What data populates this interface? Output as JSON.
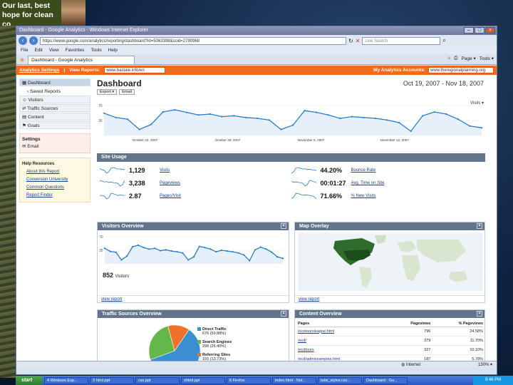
{
  "slide": {
    "banner_text": "Our last, best hope for clean co"
  },
  "window": {
    "title": "Dashboard - Google Analytics - Windows Internet Explorer",
    "url": "https://www.google.com/analytics/reporting/dashboard?id=5063398&scid=2790968",
    "search_placeholder": "Live Search",
    "menu": [
      "File",
      "Edit",
      "View",
      "Favorites",
      "Tools",
      "Help"
    ],
    "tab": "Dashboard - Google Analytics",
    "tools": [
      "Page ▾",
      "Tools ▾"
    ]
  },
  "ga_topbar": {
    "settings": "Analytics Settings",
    "view_reports_label": "View Reports:",
    "site_select": "www.bastale.info/en",
    "my_accounts_label": "My Analytics Accounts:",
    "account_select": "www.theregionalplanning.org"
  },
  "sidebar": {
    "items": [
      {
        "label": "Dashboard",
        "active": true
      },
      {
        "label": "› Saved Reports",
        "sub": true
      },
      {
        "label": "Visitors"
      },
      {
        "label": "Traffic Sources"
      },
      {
        "label": "Content"
      },
      {
        "label": "Goals"
      }
    ],
    "settings_title": "Settings",
    "settings_items": [
      "Email"
    ],
    "help_title": "Help Resources",
    "help_links": [
      "About this Report",
      "Conversion University",
      "Common Questions",
      "Report Finder"
    ]
  },
  "dashboard": {
    "title": "Dashboard",
    "date_range": "Oct 19, 2007 - Nov 18, 2007",
    "export_label": "Export ▾",
    "email_label": "Email",
    "visits_selector": "Visits ▾"
  },
  "chart_data": {
    "type": "line",
    "title": "",
    "ylabel": "",
    "y_ticks": [
      "70",
      "35"
    ],
    "ylim": [
      0,
      70
    ],
    "x_tick_labels": [
      "October 22, 2007",
      "October 29, 2007",
      "November 5, 2007",
      "November 12, 2007"
    ],
    "series": [
      {
        "values": [
          52,
          42,
          38,
          14,
          26,
          55,
          60,
          54,
          48,
          50,
          44,
          46,
          42,
          40,
          36,
          14,
          24,
          58,
          54,
          48,
          40,
          44,
          42,
          40,
          36,
          30,
          10,
          46,
          55,
          50,
          38,
          22,
          18
        ]
      }
    ]
  },
  "site_usage": {
    "title": "Site Usage",
    "metrics": [
      {
        "value": "1,129",
        "label": "Visits"
      },
      {
        "value": "44.20%",
        "label": "Bounce Rate"
      },
      {
        "value": "3,238",
        "label": "Pageviews"
      },
      {
        "value": "00:01:27",
        "label": "Avg. Time on Site"
      },
      {
        "value": "2.87",
        "label": "Pages/Visit"
      },
      {
        "value": "71.66%",
        "label": "% New Visits"
      }
    ]
  },
  "visitors_overview": {
    "title": "Visitors Overview",
    "y_ticks": [
      "70",
      "35"
    ],
    "count": "852",
    "count_label": "Visitors",
    "footer": "view report",
    "chart_values": [
      40,
      32,
      30,
      10,
      20,
      44,
      48,
      42,
      38,
      40,
      34,
      36,
      33,
      31,
      28,
      10,
      18,
      45,
      42,
      38,
      31,
      35,
      33,
      31,
      28,
      23,
      8,
      36,
      43,
      38,
      30,
      18,
      14
    ]
  },
  "map_overlay": {
    "title": "Map Overlay",
    "footer": "view report"
  },
  "traffic_sources": {
    "title": "Traffic Sources Overview",
    "slices": [
      {
        "name": "Direct Traffic",
        "detail": "676 (59.88%)",
        "value": 59.88,
        "color": "#3a8fd0"
      },
      {
        "name": "Search Engines",
        "detail": "298 (26.40%)",
        "value": 26.4,
        "color": "#63b849"
      },
      {
        "name": "Referring Sites",
        "detail": "155 (13.73%)",
        "value": 13.73,
        "color": "#f0722a"
      }
    ]
  },
  "content_overview": {
    "title": "Content Overview",
    "columns": [
      "Pages",
      "Pageviews",
      "% Pageviews"
    ],
    "rows": [
      {
        "page": "/ecotoursleague.html",
        "views": "796",
        "pct": "24.58%"
      },
      {
        "page": "/ecd/",
        "views": "379",
        "pct": "11.70%"
      },
      {
        "page": "/ecdtours",
        "views": "327",
        "pct": "10.10%"
      },
      {
        "page": "/ecd/adminsamples.html",
        "views": "187",
        "pct": "5.78%"
      }
    ]
  },
  "status": {
    "zone": "Internet",
    "zoom": "130% ▾"
  },
  "taskbar": {
    "start": "start",
    "tasks": [
      "4 Windows Exp...",
      "3 html.ppt",
      "css.ppt",
      "xhtml.ppt",
      "6 Firefox",
      "index.html - Not...",
      "tabs_styles.css...",
      "Dashboard - Go..."
    ],
    "clock": "9:46 PM"
  }
}
